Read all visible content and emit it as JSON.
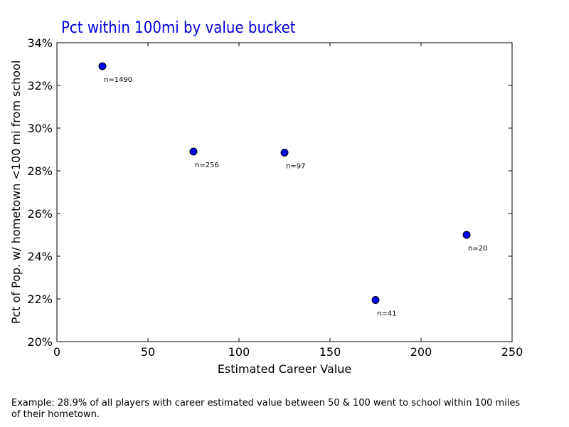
{
  "chart_data": {
    "type": "scatter",
    "title": "Pct within 100mi by value bucket",
    "xlabel": "Estimated Career Value",
    "ylabel": "Pct of Pop. w/ hometown <100 mi from school",
    "xlim": [
      0,
      250
    ],
    "ylim": [
      0.2,
      0.34
    ],
    "xticks": [
      0,
      50,
      100,
      150,
      200,
      250
    ],
    "xtick_labels": [
      "0",
      "50",
      "100",
      "150",
      "200",
      "250"
    ],
    "yticks": [
      0.2,
      0.22,
      0.24,
      0.26,
      0.28,
      0.3,
      0.32,
      0.34
    ],
    "ytick_labels": [
      "20%",
      "22%",
      "24%",
      "26%",
      "28%",
      "30%",
      "32%",
      "34%"
    ],
    "grid": false,
    "colors": {
      "title": "#0000dd",
      "marker": "#0000ee"
    },
    "points": [
      {
        "x": 25,
        "y": 0.329,
        "label": "n=1490"
      },
      {
        "x": 75,
        "y": 0.289,
        "label": "n=256"
      },
      {
        "x": 125,
        "y": 0.2885,
        "label": "n=97"
      },
      {
        "x": 175,
        "y": 0.2195,
        "label": "n=41"
      },
      {
        "x": 225,
        "y": 0.25,
        "label": "n=20"
      }
    ]
  },
  "caption": "Example: 28.9% of all players with career estimated value between 50 & 100 went to school within 100 miles of their hometown."
}
